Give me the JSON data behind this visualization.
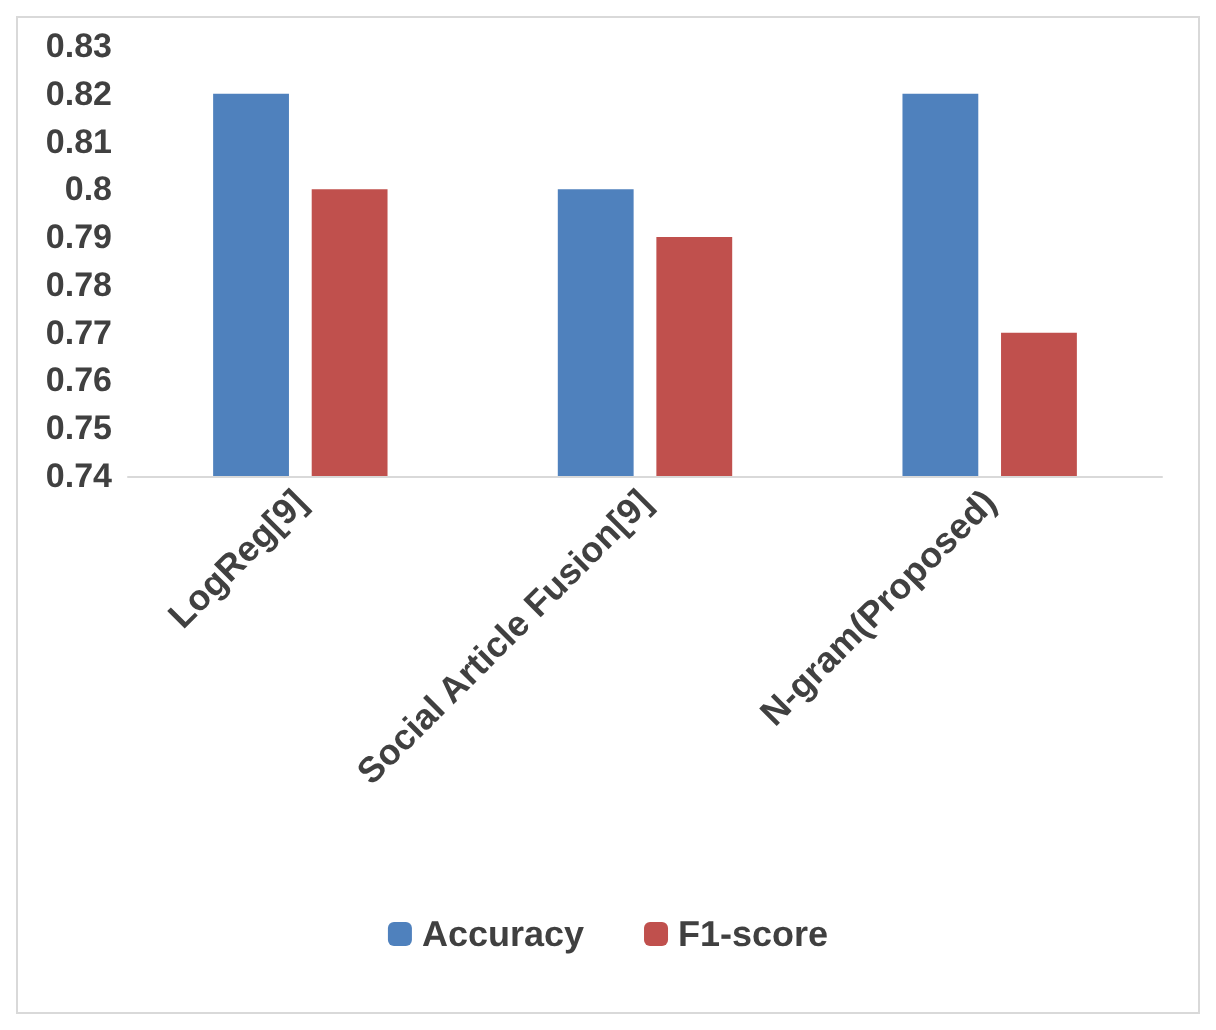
{
  "chart_data": {
    "type": "bar",
    "categories": [
      "LogReg[9]",
      "Social Article Fusion[9]",
      "N-gram(Proposed)"
    ],
    "series": [
      {
        "name": "Accuracy",
        "color": "#4f81bd",
        "values": [
          0.82,
          0.8,
          0.82
        ]
      },
      {
        "name": "F1-score",
        "color": "#c0504d",
        "values": [
          0.8,
          0.79,
          0.77
        ]
      }
    ],
    "ylim": [
      0.74,
      0.83
    ],
    "yticks": [
      0.74,
      0.75,
      0.76,
      0.77,
      0.78,
      0.79,
      0.8,
      0.81,
      0.82,
      0.83
    ],
    "grid": false,
    "legend": "bottom"
  }
}
